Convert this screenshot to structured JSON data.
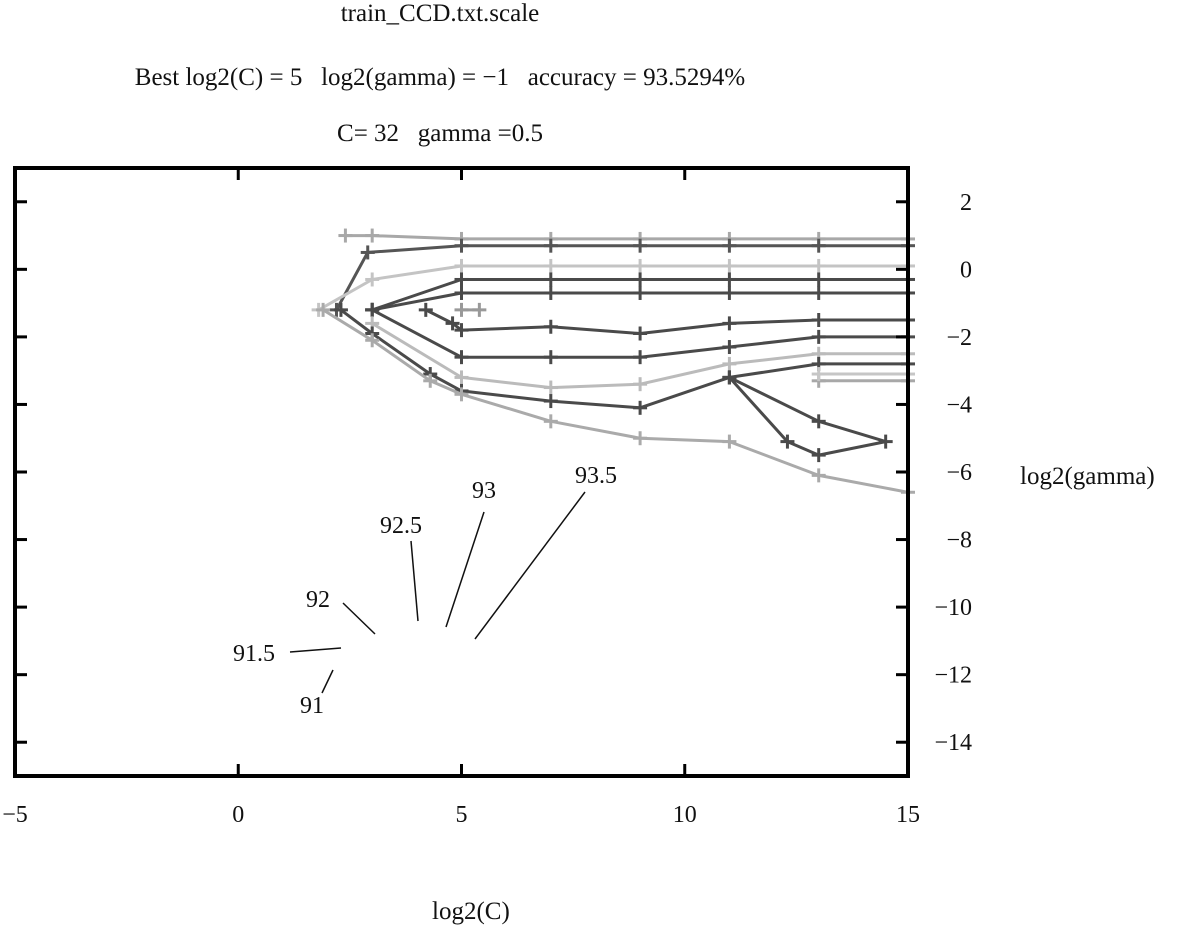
{
  "chart_data": {
    "type": "line",
    "subtype": "contour",
    "title": "train_CCD.txt.scale",
    "subtitle_lines": [
      "Best log2(C) = 5   log2(gamma) = −1   accuracy = 93.5294%",
      "C= 32   gamma =0.5"
    ],
    "xlabel": "log2(C)",
    "ylabel": "log2(gamma)",
    "xlim": [
      -5,
      15
    ],
    "ylim": [
      3,
      -15
    ],
    "x_ticks": [
      -5,
      0,
      5,
      10,
      15
    ],
    "x_tick_labels": [
      "−5",
      "0",
      "5",
      "10",
      "15"
    ],
    "y_ticks": [
      -14,
      -12,
      -10,
      -8,
      -6,
      -4,
      -2,
      0,
      2
    ],
    "y_tick_labels": [
      "−14",
      "−12",
      "−10",
      "−8",
      "−6",
      "−4",
      "−2",
      "0",
      "2"
    ],
    "y_axis_position": "right",
    "grid": false,
    "contour_labels": [
      "91",
      "91.5",
      "92",
      "92.5",
      "93",
      "93.5"
    ],
    "series": [
      {
        "color": "#a8a8a8",
        "points": [
          [
            2.4,
            1
          ],
          [
            3,
            1
          ],
          [
            5,
            0.9
          ],
          [
            7,
            0.9
          ],
          [
            9,
            0.9
          ],
          [
            11,
            0.9
          ],
          [
            13,
            0.9
          ],
          [
            15,
            0.9
          ]
        ]
      },
      {
        "color": "#555555",
        "points": [
          [
            2.2,
            -1.2
          ],
          [
            2.9,
            0.5
          ],
          [
            5,
            0.7
          ],
          [
            7,
            0.7
          ],
          [
            9,
            0.7
          ],
          [
            11,
            0.7
          ],
          [
            13,
            0.7
          ],
          [
            15,
            0.7
          ]
        ]
      },
      {
        "color": "#c4c4c4",
        "points": [
          [
            1.8,
            -1.2
          ],
          [
            3,
            -0.3
          ],
          [
            5,
            0.1
          ],
          [
            7,
            0.1
          ],
          [
            9,
            0.1
          ],
          [
            11,
            0.1
          ],
          [
            13,
            0.1
          ],
          [
            15,
            0.1
          ]
        ]
      },
      {
        "color": "#4a4a4a",
        "points": [
          [
            3,
            -1.2
          ],
          [
            5,
            -0.3
          ],
          [
            7,
            -0.3
          ],
          [
            9,
            -0.3
          ],
          [
            11,
            -0.3
          ],
          [
            13,
            -0.3
          ],
          [
            15,
            -0.3
          ]
        ]
      },
      {
        "color": "#4a4a4a",
        "points": [
          [
            3,
            -1.2
          ],
          [
            5,
            -0.7
          ],
          [
            7,
            -0.7
          ],
          [
            9,
            -0.7
          ],
          [
            11,
            -0.7
          ],
          [
            13,
            -0.7
          ],
          [
            15,
            -0.7
          ]
        ]
      },
      {
        "color": "#4a4a4a",
        "points": [
          [
            4.2,
            -1.2
          ],
          [
            4.8,
            -1.6
          ],
          [
            5,
            -1.8
          ],
          [
            7,
            -1.7
          ],
          [
            9,
            -1.9
          ],
          [
            11,
            -1.6
          ],
          [
            13,
            -1.5
          ],
          [
            15,
            -1.5
          ]
        ]
      },
      {
        "color": "#999999",
        "points": [
          [
            5,
            -1.2
          ],
          [
            5.4,
            -1.2
          ]
        ]
      },
      {
        "color": "#4a4a4a",
        "points": [
          [
            3,
            -1.2
          ],
          [
            5,
            -2.6
          ],
          [
            7,
            -2.6
          ],
          [
            9,
            -2.6
          ],
          [
            11,
            -2.3
          ],
          [
            13,
            -2.0
          ],
          [
            15,
            -2.0
          ]
        ]
      },
      {
        "color": "#bbbbbb",
        "points": [
          [
            3,
            -1.6
          ],
          [
            5,
            -3.2
          ],
          [
            7,
            -3.5
          ],
          [
            9,
            -3.4
          ],
          [
            11,
            -2.8
          ],
          [
            13,
            -2.5
          ],
          [
            15,
            -2.5
          ]
        ]
      },
      {
        "color": "#4a4a4a",
        "points": [
          [
            2.3,
            -1.2
          ],
          [
            3,
            -1.9
          ],
          [
            4.3,
            -3.1
          ],
          [
            5,
            -3.6
          ],
          [
            7,
            -3.9
          ],
          [
            9,
            -4.1
          ],
          [
            11,
            -3.2
          ],
          [
            13,
            -2.8
          ],
          [
            15,
            -2.8
          ]
        ]
      },
      {
        "color": "#aaaaaa",
        "points": [
          [
            1.9,
            -1.2
          ],
          [
            3,
            -2.1
          ],
          [
            4.3,
            -3.3
          ],
          [
            5,
            -3.7
          ],
          [
            7,
            -4.5
          ],
          [
            9,
            -5
          ],
          [
            11,
            -5.1
          ],
          [
            13,
            -6.1
          ],
          [
            15,
            -6.6
          ]
        ]
      },
      {
        "color": "#a8a8a8",
        "points": [
          [
            13,
            -3.3
          ],
          [
            15,
            -3.3
          ]
        ]
      },
      {
        "color": "#c6c6c6",
        "points": [
          [
            13,
            -3.1
          ],
          [
            15,
            -3.1
          ]
        ]
      },
      {
        "color": "#4a4a4a",
        "points": [
          [
            11,
            -3.2
          ],
          [
            12.3,
            -5.1
          ],
          [
            13,
            -5.5
          ],
          [
            14.5,
            -5.1
          ],
          [
            13,
            -4.5
          ],
          [
            11,
            -3.2
          ]
        ]
      }
    ]
  }
}
